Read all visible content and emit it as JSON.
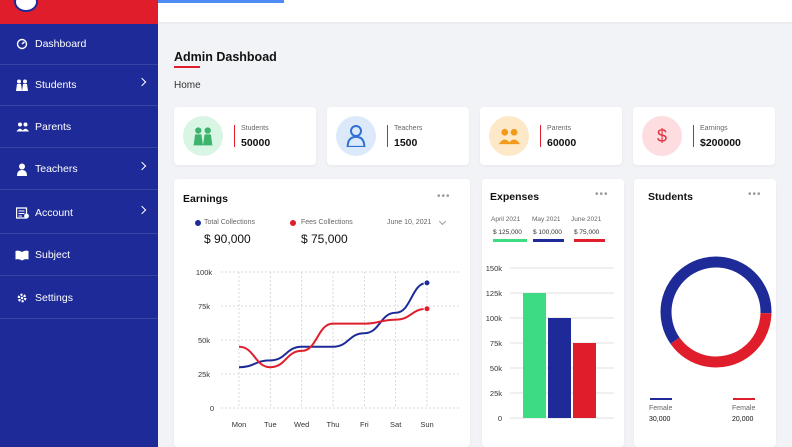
{
  "sidebar": {
    "items": [
      {
        "label": "Dashboard",
        "icon": "dashboard-icon",
        "has_submenu": false
      },
      {
        "label": "Students",
        "icon": "students-icon",
        "has_submenu": true
      },
      {
        "label": "Parents",
        "icon": "parents-icon",
        "has_submenu": false
      },
      {
        "label": "Teachers",
        "icon": "teacher-icon",
        "has_submenu": true
      },
      {
        "label": "Account",
        "icon": "account-icon",
        "has_submenu": true
      },
      {
        "label": "Subject",
        "icon": "book-icon",
        "has_submenu": false
      },
      {
        "label": "Settings",
        "icon": "gear-icon",
        "has_submenu": false
      }
    ]
  },
  "header": {
    "title": "Admin Dashboad",
    "breadcrumb": "Home"
  },
  "stats": [
    {
      "label": "Students",
      "value": "50000",
      "icon": "students-icon",
      "color": "#3db36b",
      "bg": "#d9f5e3"
    },
    {
      "label": "Teachers",
      "value": "1500",
      "icon": "teacher-icon",
      "color": "#2f6fd6",
      "bg": "#dbe9fb"
    },
    {
      "label": "Parents",
      "value": "60000",
      "icon": "parents-icon",
      "color": "#f39a1c",
      "bg": "#fde8c8"
    },
    {
      "label": "Earnings",
      "value": "$200000",
      "icon": "dollar-icon",
      "color": "#e0303c",
      "bg": "#fddde0"
    }
  ],
  "earnings": {
    "title": "Earnings",
    "legend": [
      {
        "label": "Total Collections",
        "value": "$ 90,000",
        "color": "#1e2a98"
      },
      {
        "label": "Fees Collections",
        "value": "$ 75,000",
        "color": "#e01e2b"
      }
    ],
    "date": "June 10, 2021"
  },
  "expenses": {
    "title": "Expenses",
    "months": [
      {
        "label": "April 2021",
        "value": "$ 125,000",
        "color": "#3ddc84"
      },
      {
        "label": "May 2021",
        "value": "$ 100,000",
        "color": "#1e2a98"
      },
      {
        "label": "June 2021",
        "value": "$ 75,000",
        "color": "#e01e2b"
      }
    ]
  },
  "students_chart": {
    "title": "Students",
    "legend": [
      {
        "label": "Female",
        "value": "30,000",
        "color": "#1e2a98"
      },
      {
        "label": "Female",
        "value": "20,000",
        "color": "#e01e2b"
      }
    ]
  },
  "chart_data": [
    {
      "type": "line",
      "title": "Earnings",
      "x": [
        "Mon",
        "Tue",
        "Wed",
        "Thu",
        "Fri",
        "Sat",
        "Sun"
      ],
      "y_ticks": [
        "0",
        "25k",
        "50k",
        "75k",
        "100k"
      ],
      "ylim": [
        0,
        100000
      ],
      "grid": true,
      "series": [
        {
          "name": "Total Collections",
          "color": "#1e2a98",
          "values": [
            30000,
            35000,
            45000,
            45000,
            55000,
            70000,
            92000
          ]
        },
        {
          "name": "Fees Collections",
          "color": "#e01e2b",
          "values": [
            45000,
            30000,
            42000,
            62000,
            62000,
            65000,
            73000
          ]
        }
      ]
    },
    {
      "type": "bar",
      "title": "Expenses",
      "categories": [
        "April 2021",
        "May 2021",
        "June 2021"
      ],
      "values": [
        125000,
        100000,
        75000
      ],
      "colors": [
        "#3ddc84",
        "#1e2a98",
        "#e01e2b"
      ],
      "y_ticks": [
        "0",
        "25k",
        "50k",
        "75k",
        "100k",
        "125k",
        "150k"
      ],
      "ylim": [
        0,
        150000
      ],
      "grid": true
    },
    {
      "type": "pie",
      "title": "Students",
      "labels": [
        "Female",
        "Female"
      ],
      "values": [
        30000,
        20000
      ],
      "colors": [
        "#1e2a98",
        "#e01e2b"
      ]
    }
  ]
}
